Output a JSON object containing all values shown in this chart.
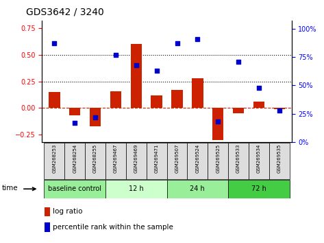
{
  "title": "GDS3642 / 3240",
  "samples": [
    "GSM268253",
    "GSM268254",
    "GSM268255",
    "GSM269467",
    "GSM269469",
    "GSM269471",
    "GSM269507",
    "GSM269524",
    "GSM269525",
    "GSM269533",
    "GSM269534",
    "GSM269535"
  ],
  "log_ratio": [
    0.15,
    -0.07,
    -0.17,
    0.16,
    0.6,
    0.12,
    0.17,
    0.28,
    -0.3,
    -0.05,
    0.06,
    -0.01
  ],
  "percentile": [
    87,
    17,
    22,
    77,
    68,
    63,
    87,
    91,
    18,
    71,
    48,
    28
  ],
  "groups": [
    {
      "label": "baseline control",
      "start": 0,
      "end": 3,
      "color": "#99ee99"
    },
    {
      "label": "12 h",
      "start": 3,
      "end": 6,
      "color": "#ccffcc"
    },
    {
      "label": "24 h",
      "start": 6,
      "end": 9,
      "color": "#99ee99"
    },
    {
      "label": "72 h",
      "start": 9,
      "end": 12,
      "color": "#44cc44"
    }
  ],
  "bar_color": "#cc2200",
  "dot_color": "#0000cc",
  "ylim_left": [
    -0.32,
    0.82
  ],
  "ylim_right": [
    0,
    107
  ],
  "yticks_left": [
    -0.25,
    0,
    0.25,
    0.5,
    0.75
  ],
  "yticks_right": [
    0,
    25,
    50,
    75,
    100
  ],
  "hlines": [
    0.25,
    0.5
  ],
  "bar_width": 0.55,
  "fig_width": 4.73,
  "fig_height": 3.54
}
